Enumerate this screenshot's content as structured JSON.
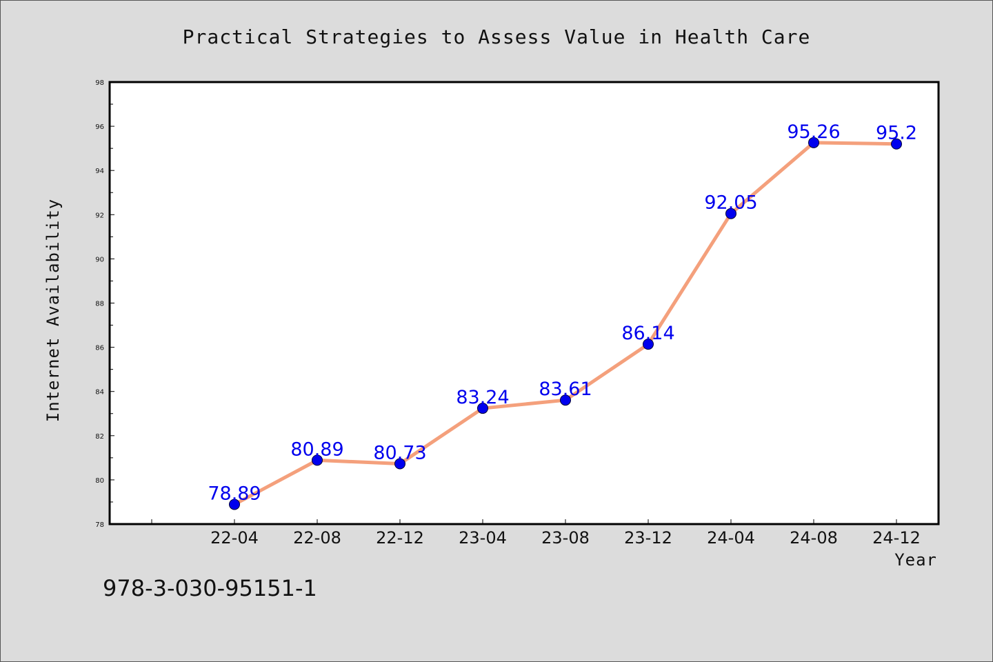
{
  "chart_data": {
    "type": "line",
    "title": "Practical Strategies to Assess Value in Health Care",
    "xlabel": "Year",
    "ylabel": "Internet Availability",
    "categories": [
      "22-04",
      "22-08",
      "22-12",
      "23-04",
      "23-08",
      "23-12",
      "24-04",
      "24-08",
      "24-12"
    ],
    "series": [
      {
        "values": [
          78.89,
          80.89,
          80.73,
          83.24,
          83.61,
          86.14,
          92.05,
          95.26,
          95.2
        ],
        "data_labels": [
          "78.89",
          "80.89",
          "80.73",
          "83.24",
          "83.61",
          "86.14",
          "92.05",
          "95.26",
          "95.2"
        ]
      }
    ],
    "ylim": [
      78,
      98
    ],
    "yticks": [
      "78",
      "80",
      "82",
      "84",
      "86",
      "88",
      "90",
      "92",
      "94",
      "96",
      "98"
    ],
    "grid": false,
    "legend": "none",
    "colors": {
      "line": "#f4a07c",
      "marker": "#0000ee",
      "marker_edge": "#000033",
      "label": "#0000ee",
      "frame": "#000000",
      "background": "#dcdcdc",
      "plot_background": "#ffffff"
    }
  },
  "footer": {
    "isbn": "978-3-030-95151-1"
  }
}
